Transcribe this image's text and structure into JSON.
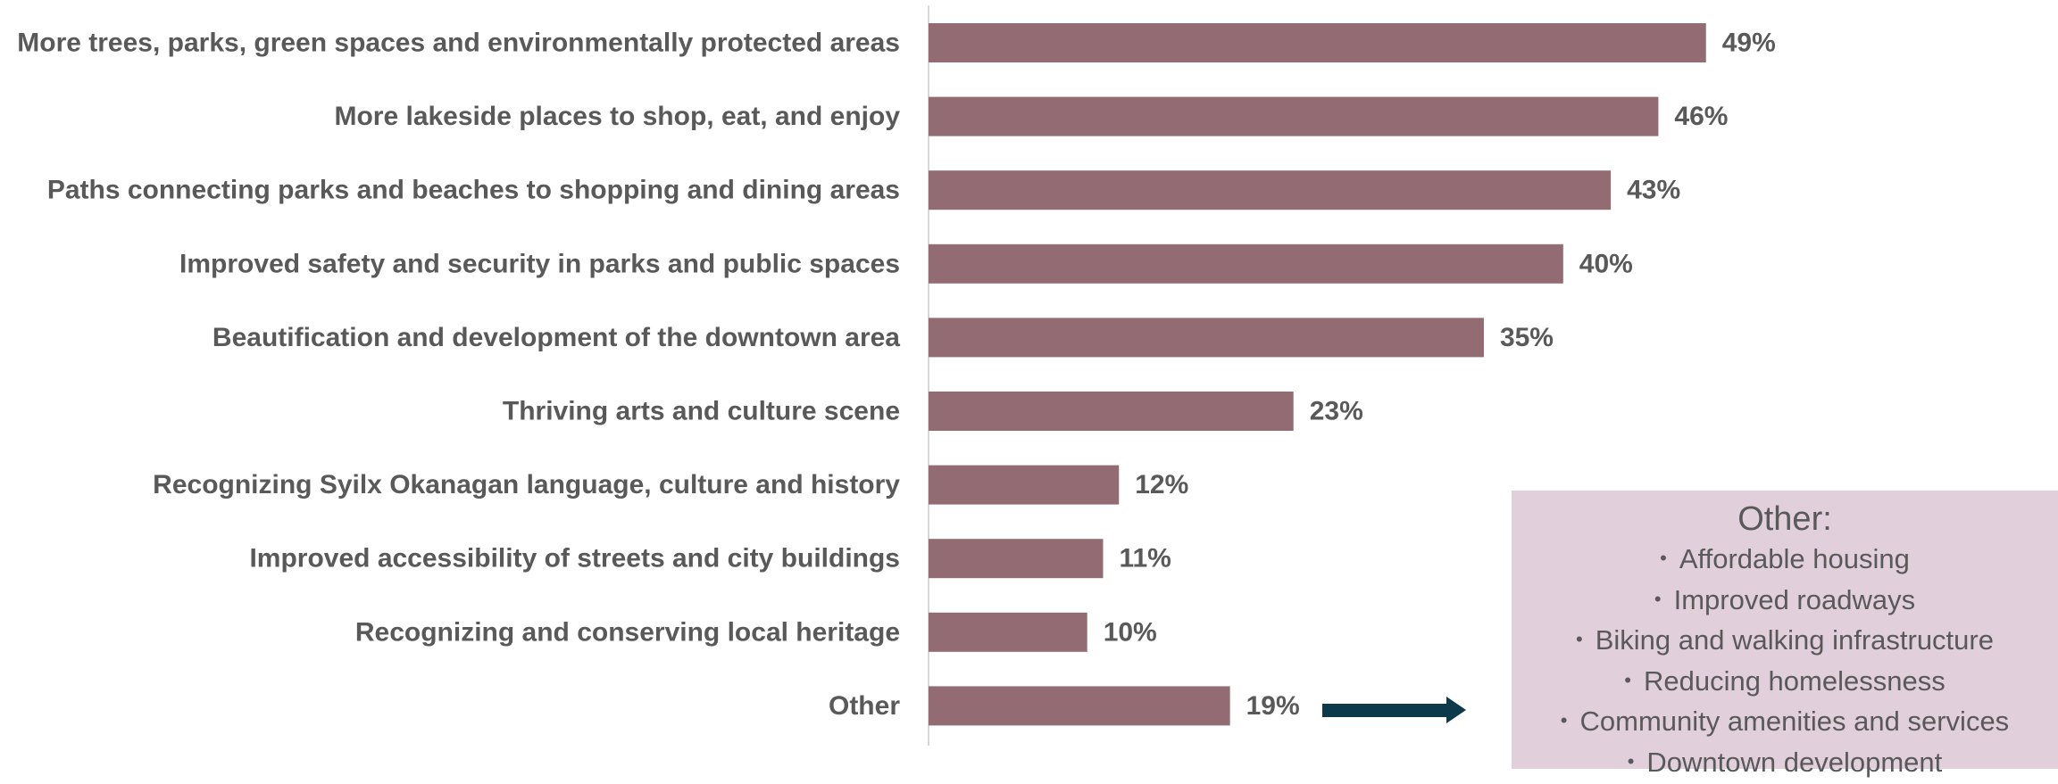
{
  "chart_data": {
    "type": "bar",
    "orientation": "horizontal",
    "categories": [
      "More trees, parks, green spaces and environmentally protected areas",
      "More lakeside places to shop, eat, and enjoy",
      "Paths connecting parks and beaches to shopping and dining areas",
      "Improved safety and security in parks and public spaces",
      "Beautification and development of the downtown area",
      "Thriving arts and culture scene",
      "Recognizing Syilx Okanagan language, culture and history",
      "Improved accessibility of streets and city buildings",
      "Recognizing and conserving local heritage",
      "Other"
    ],
    "values": [
      49,
      46,
      43,
      40,
      35,
      23,
      12,
      11,
      10,
      19
    ],
    "value_labels": [
      "49%",
      "46%",
      "43%",
      "40%",
      "35%",
      "23%",
      "12%",
      "11%",
      "10%",
      "19%"
    ],
    "unit": "%",
    "xlim": [
      0,
      50
    ],
    "grid": false,
    "bar_color": "#936b72",
    "text_color": "#595959"
  },
  "other_panel": {
    "title": "Other:",
    "items": [
      "Affordable housing",
      "Improved roadways",
      "Biking and walking infrastructure",
      "Reducing homelessness",
      "Community amenities and services",
      "Downtown development"
    ],
    "background": "#e2cfdc",
    "bullet": "•"
  },
  "arrow": {
    "icon": "arrow-right-icon",
    "color": "#0d3a4b"
  }
}
